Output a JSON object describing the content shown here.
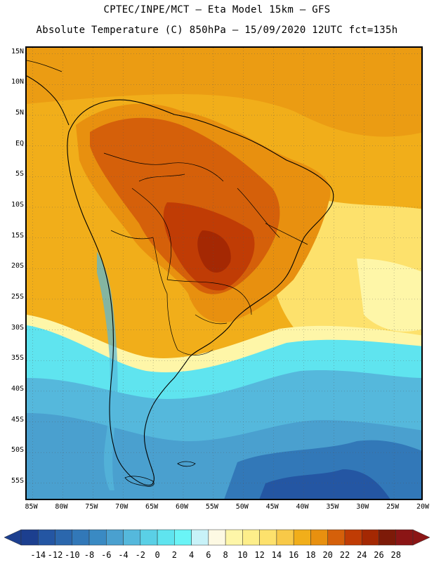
{
  "title": {
    "line1": "CPTEC/INPE/MCT —  Eta Model 15km — GFS",
    "line2": "Absolute Temperature (C) 850hPa — 15/09/2020 12UTC fct=135h"
  },
  "map": {
    "variable": "Absolute Temperature",
    "units": "C",
    "level": "850hPa",
    "lon_range": [
      -86,
      -20
    ],
    "lat_range": [
      -58,
      16
    ],
    "lat_labels": [
      "15N",
      "10N",
      "5N",
      "EQ",
      "5S",
      "10S",
      "15S",
      "20S",
      "25S",
      "30S",
      "35S",
      "40S",
      "45S",
      "50S",
      "55S"
    ],
    "lat_values": [
      15,
      10,
      5,
      0,
      -5,
      -10,
      -15,
      -20,
      -25,
      -30,
      -35,
      -40,
      -45,
      -50,
      -55
    ],
    "lon_labels": [
      "85W",
      "80W",
      "75W",
      "70W",
      "65W",
      "60W",
      "55W",
      "50W",
      "45W",
      "40W",
      "35W",
      "30W",
      "25W",
      "20W"
    ],
    "lon_values": [
      -85,
      -80,
      -75,
      -70,
      -65,
      -60,
      -55,
      -50,
      -45,
      -40,
      -35,
      -30,
      -25,
      -20
    ]
  },
  "colorbar": {
    "labels": [
      "-14",
      "-12",
      "-10",
      "-8",
      "-6",
      "-4",
      "-2",
      "0",
      "2",
      "4",
      "6",
      "8",
      "10",
      "12",
      "14",
      "16",
      "18",
      "20",
      "22",
      "24",
      "26",
      "28"
    ],
    "colors": [
      "#1c3f8f",
      "#2456a3",
      "#2b67ad",
      "#3278b8",
      "#3a8ac3",
      "#4aa0cf",
      "#55b8dc",
      "#5ad0e6",
      "#5fe4ef",
      "#6af4f6",
      "#c8f2f8",
      "#fdf9e3",
      "#fef6a8",
      "#fdee8a",
      "#fde16c",
      "#f8c948",
      "#f1ae1a",
      "#e8900f",
      "#d5600a",
      "#c03c05",
      "#a42803",
      "#7d1a08",
      "#8b1515"
    ],
    "min_arrow_color": "#1c3f8f",
    "max_arrow_color": "#8b1515"
  }
}
